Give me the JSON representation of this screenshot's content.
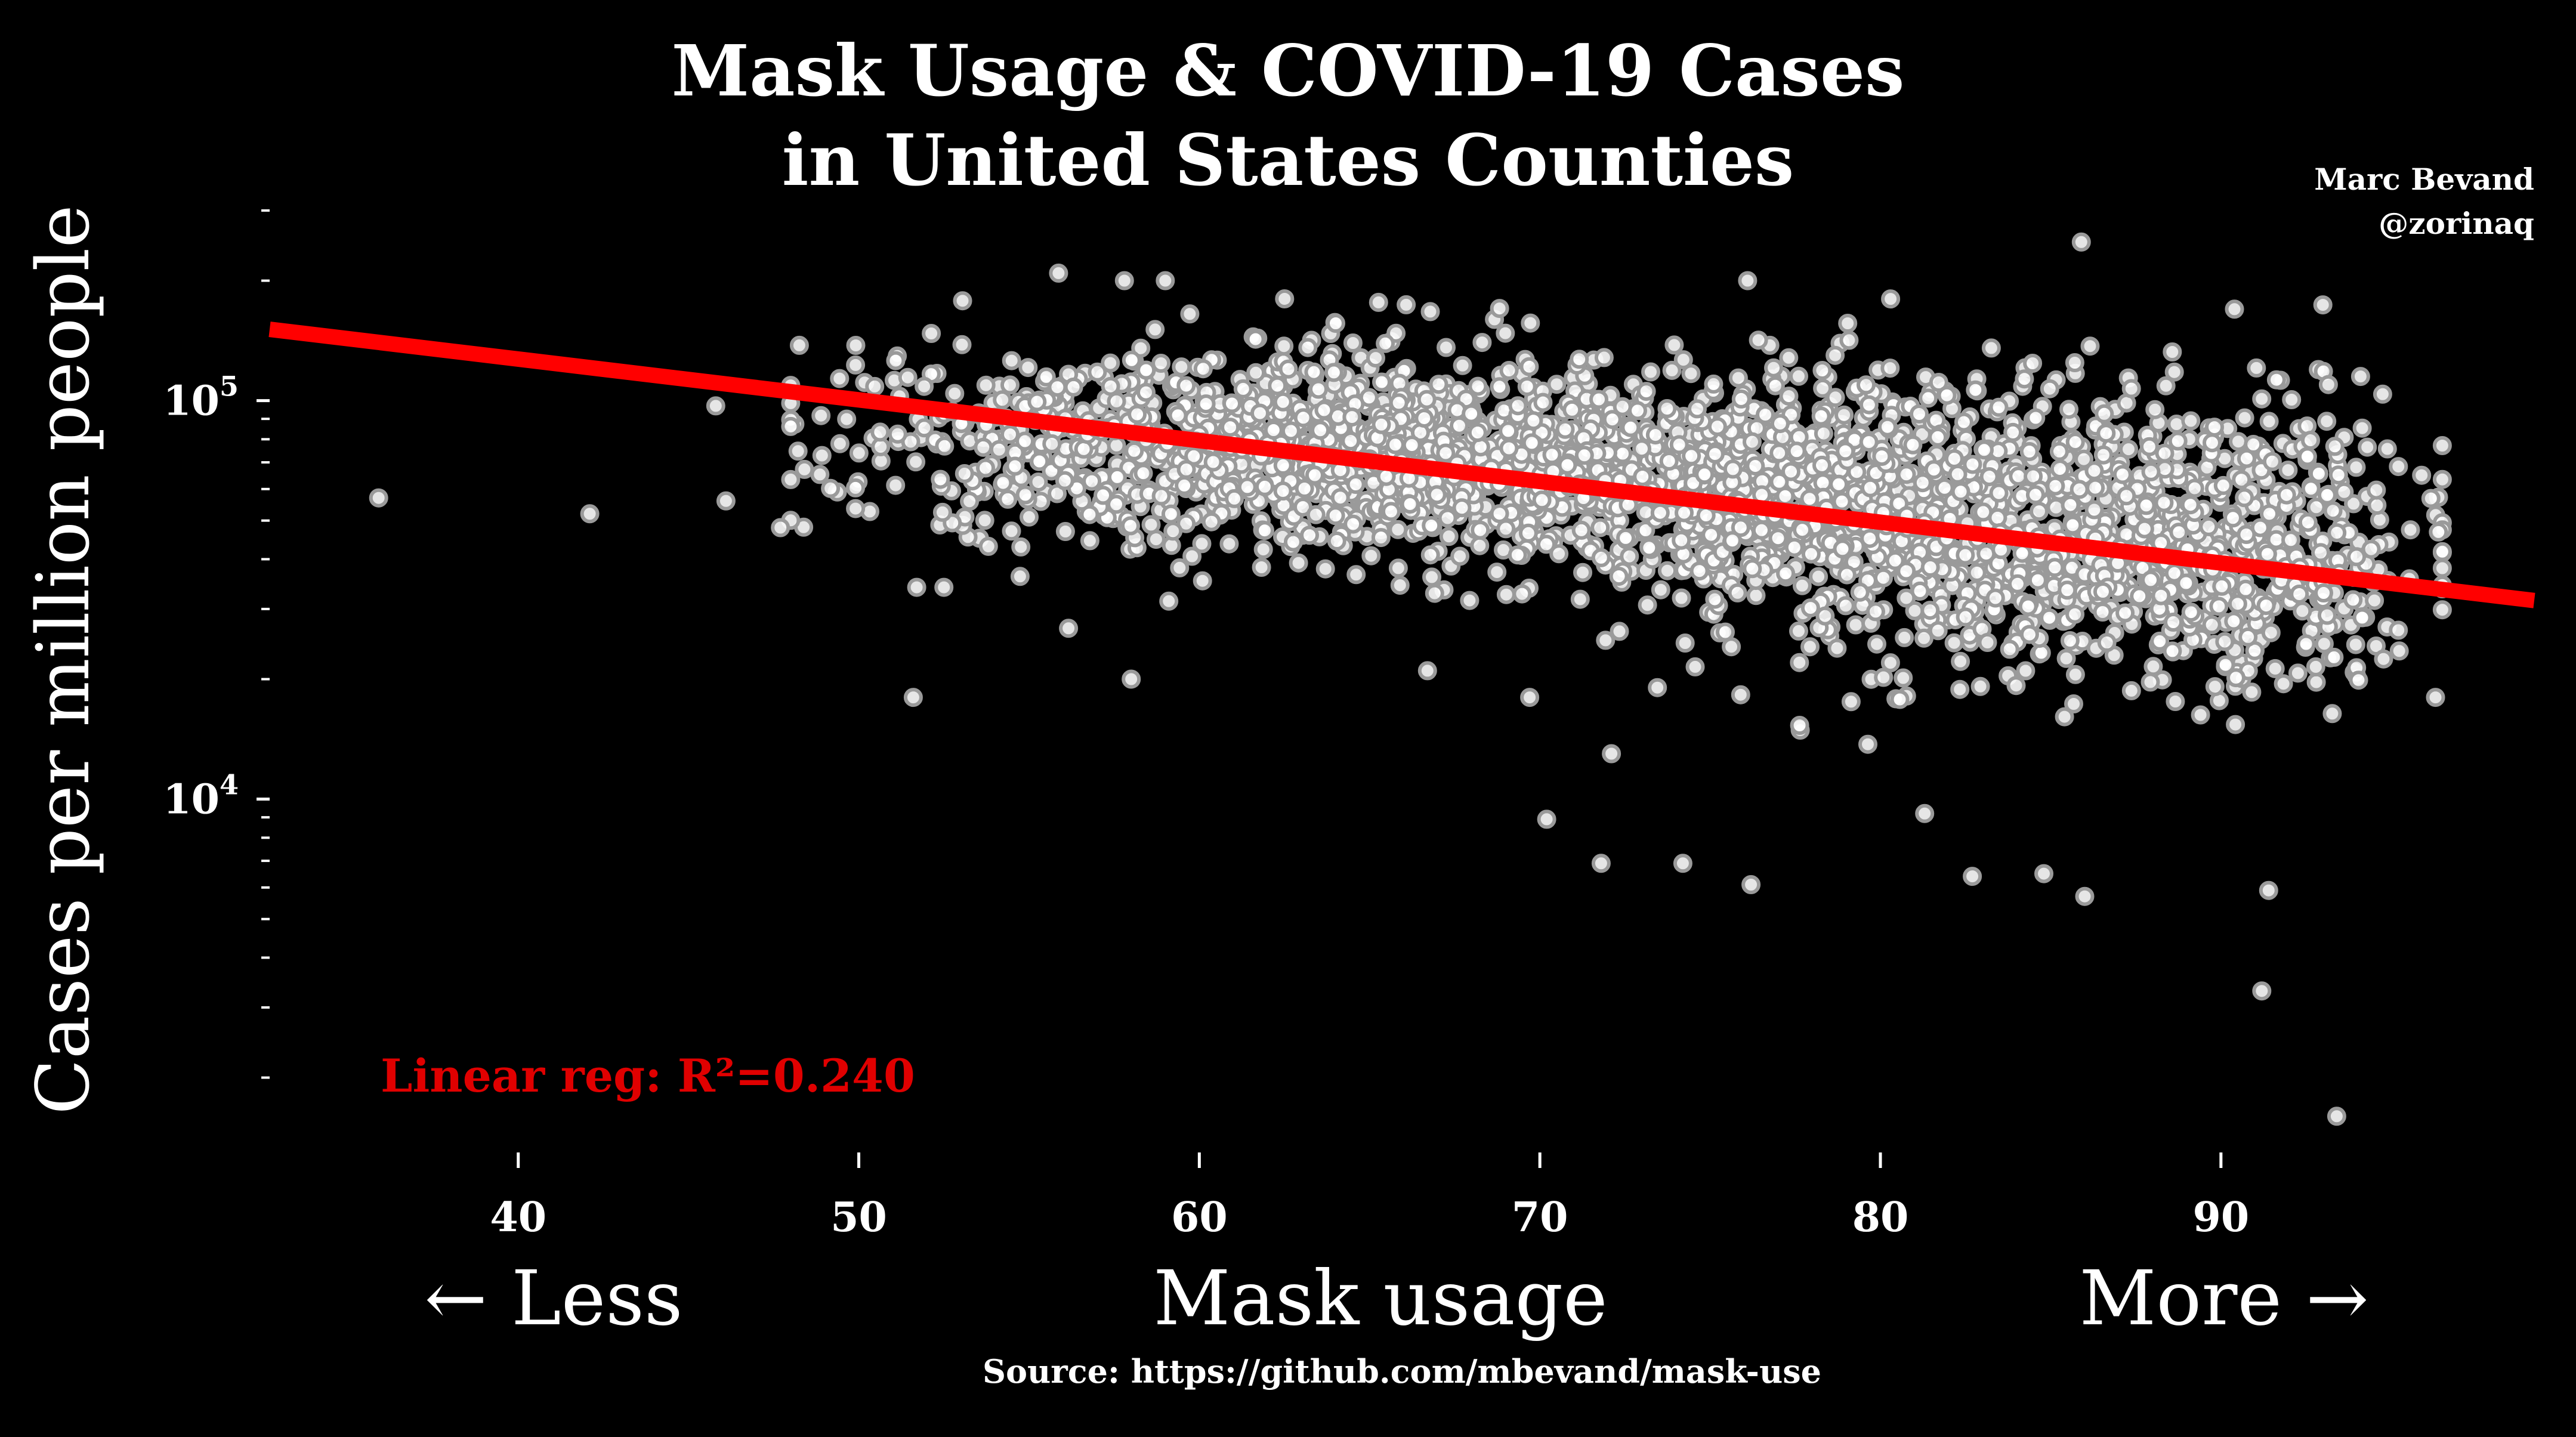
{
  "chart_data": {
    "type": "scatter",
    "title_lines": [
      "Mask Usage & COVID-19 Cases",
      "in United States Counties"
    ],
    "attribution": [
      "Marc Bevand",
      "@zorinaq"
    ],
    "xlabel": "Mask usage",
    "xlabel_left": "← Less",
    "xlabel_right": "More →",
    "ylabel": "Cases per million people",
    "x_ticks": [
      "40",
      "50",
      "60",
      "70",
      "80",
      "90"
    ],
    "y_tick_base": "10",
    "y_ticks": [
      {
        "value": 10000,
        "exp": "4"
      },
      {
        "value": 100000,
        "exp": "5"
      }
    ],
    "yscale": "log",
    "xlim": [
      32.7,
      99.2
    ],
    "ylim": [
      1400,
      360000
    ],
    "annotation": "Linear reg: R²=0.240",
    "source": "Source: https://github.com/mbevand/mask-use",
    "regression": {
      "x": [
        32.7,
        99.2
      ],
      "y": [
        151000,
        31500
      ]
    },
    "grid": false,
    "legend": "none",
    "colors": {
      "background": "#000000",
      "points": "#ffffff",
      "point_edge": "#9a9a9a",
      "regression": "#ff0000",
      "annotation": "#e00000",
      "text": "#ffffff"
    },
    "approximate_point_count": 3100,
    "notable_points": [
      {
        "x": 35.9,
        "y": 57000
      },
      {
        "x": 42.1,
        "y": 52000
      },
      {
        "x": 45.8,
        "y": 97000
      },
      {
        "x": 46.1,
        "y": 56000
      },
      {
        "x": 47.7,
        "y": 48000
      },
      {
        "x": 51.6,
        "y": 18000
      },
      {
        "x": 51.7,
        "y": 34000
      },
      {
        "x": 52.5,
        "y": 34000
      },
      {
        "x": 57.8,
        "y": 200000
      },
      {
        "x": 58.0,
        "y": 20000
      },
      {
        "x": 59.0,
        "y": 200000
      },
      {
        "x": 66.7,
        "y": 21000
      },
      {
        "x": 69.7,
        "y": 18000
      },
      {
        "x": 70.2,
        "y": 8900
      },
      {
        "x": 71.8,
        "y": 6900
      },
      {
        "x": 72.1,
        "y": 13000
      },
      {
        "x": 74.2,
        "y": 6900
      },
      {
        "x": 76.1,
        "y": 200000
      },
      {
        "x": 76.2,
        "y": 6100
      },
      {
        "x": 80.3,
        "y": 180000
      },
      {
        "x": 81.3,
        "y": 9200
      },
      {
        "x": 82.7,
        "y": 6400
      },
      {
        "x": 84.8,
        "y": 6500
      },
      {
        "x": 85.9,
        "y": 250000
      },
      {
        "x": 86.0,
        "y": 5700
      },
      {
        "x": 91.2,
        "y": 3300
      },
      {
        "x": 91.4,
        "y": 5900
      },
      {
        "x": 93.4,
        "y": 1600
      },
      {
        "x": 94.1,
        "y": 115000
      },
      {
        "x": 96.3,
        "y": 18000
      }
    ],
    "clusters": [
      {
        "cx": 58,
        "cy": 78000,
        "sx": 4.5,
        "sy": 0.13,
        "n": 500
      },
      {
        "cx": 66,
        "cy": 75000,
        "sx": 4.0,
        "sy": 0.12,
        "n": 700
      },
      {
        "cx": 75,
        "cy": 62000,
        "sx": 3.8,
        "sy": 0.14,
        "n": 750
      },
      {
        "cx": 83,
        "cy": 48000,
        "sx": 3.8,
        "sy": 0.18,
        "n": 650
      },
      {
        "cx": 90,
        "cy": 42000,
        "sx": 2.8,
        "sy": 0.19,
        "n": 500
      }
    ]
  }
}
